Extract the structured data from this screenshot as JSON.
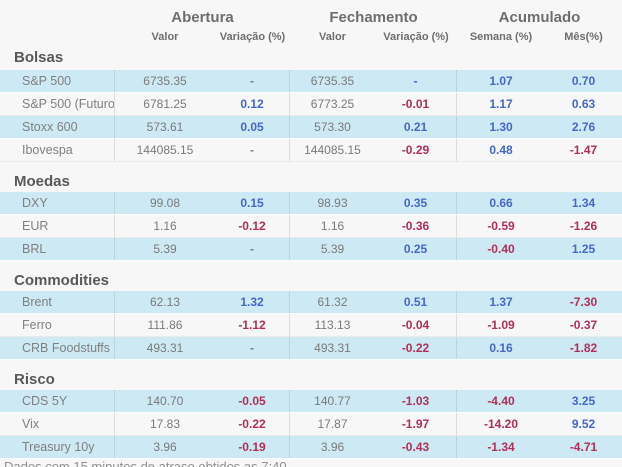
{
  "header": {
    "groups": [
      {
        "label": "Abertura"
      },
      {
        "label": "Fechamento"
      },
      {
        "label": "Acumulado"
      }
    ],
    "subheaders": [
      "Valor",
      "Variação (%)",
      "Valor",
      "Variação (%)",
      "Semana (%)",
      "Mês(%)"
    ]
  },
  "colors": {
    "positive": "#4566ca",
    "negative": "#b02f57",
    "neutral": "#7a7a7a",
    "value_text": "#7a7a7a",
    "label_text": "#808080",
    "row_highlight": "#cde9f3"
  },
  "sections": [
    {
      "title": "Bolsas",
      "rows": [
        {
          "label": "S&P 500",
          "open_value": "6735.35",
          "open_var": "-",
          "open_var_color": "neutral",
          "close_value": "6735.35",
          "close_var": "-",
          "close_var_color": "positive",
          "week": "1.07",
          "week_color": "positive",
          "month": "0.70",
          "month_color": "positive"
        },
        {
          "label": "S&P 500 (Futuro)",
          "open_value": "6781.25",
          "open_var": "0.12",
          "open_var_color": "positive",
          "close_value": "6773.25",
          "close_var": "-0.01",
          "close_var_color": "negative",
          "week": "1.17",
          "week_color": "positive",
          "month": "0.63",
          "month_color": "positive"
        },
        {
          "label": "Stoxx 600",
          "open_value": "573.61",
          "open_var": "0.05",
          "open_var_color": "positive",
          "close_value": "573.30",
          "close_var": "0.21",
          "close_var_color": "positive",
          "week": "1.30",
          "week_color": "positive",
          "month": "2.76",
          "month_color": "positive"
        },
        {
          "label": "Ibovespa",
          "open_value": "144085.15",
          "open_var": "-",
          "open_var_color": "neutral",
          "close_value": "144085.15",
          "close_var": "-0.29",
          "close_var_color": "negative",
          "week": "0.48",
          "week_color": "positive",
          "month": "-1.47",
          "month_color": "negative"
        }
      ]
    },
    {
      "title": "Moedas",
      "rows": [
        {
          "label": "DXY",
          "open_value": "99.08",
          "open_var": "0.15",
          "open_var_color": "positive",
          "close_value": "98.93",
          "close_var": "0.35",
          "close_var_color": "positive",
          "week": "0.66",
          "week_color": "positive",
          "month": "1.34",
          "month_color": "positive"
        },
        {
          "label": "EUR",
          "open_value": "1.16",
          "open_var": "-0.12",
          "open_var_color": "negative",
          "close_value": "1.16",
          "close_var": "-0.36",
          "close_var_color": "negative",
          "week": "-0.59",
          "week_color": "negative",
          "month": "-1.26",
          "month_color": "negative"
        },
        {
          "label": "BRL",
          "open_value": "5.39",
          "open_var": "-",
          "open_var_color": "neutral",
          "close_value": "5.39",
          "close_var": "0.25",
          "close_var_color": "positive",
          "week": "-0.40",
          "week_color": "negative",
          "month": "1.25",
          "month_color": "positive"
        }
      ]
    },
    {
      "title": "Commodities",
      "rows": [
        {
          "label": "Brent",
          "open_value": "62.13",
          "open_var": "1.32",
          "open_var_color": "positive",
          "close_value": "61.32",
          "close_var": "0.51",
          "close_var_color": "positive",
          "week": "1.37",
          "week_color": "positive",
          "month": "-7.30",
          "month_color": "negative"
        },
        {
          "label": "Ferro",
          "open_value": "111.86",
          "open_var": "-1.12",
          "open_var_color": "negative",
          "close_value": "113.13",
          "close_var": "-0.04",
          "close_var_color": "negative",
          "week": "-1.09",
          "week_color": "negative",
          "month": "-0.37",
          "month_color": "negative"
        },
        {
          "label": "CRB Foodstuffs",
          "open_value": "493.31",
          "open_var": "-",
          "open_var_color": "neutral",
          "close_value": "493.31",
          "close_var": "-0.22",
          "close_var_color": "negative",
          "week": "0.16",
          "week_color": "positive",
          "month": "-1.82",
          "month_color": "negative"
        }
      ]
    },
    {
      "title": "Risco",
      "rows": [
        {
          "label": "CDS 5Y",
          "open_value": "140.70",
          "open_var": "-0.05",
          "open_var_color": "negative",
          "close_value": "140.77",
          "close_var": "-1.03",
          "close_var_color": "negative",
          "week": "-4.40",
          "week_color": "negative",
          "month": "3.25",
          "month_color": "positive"
        },
        {
          "label": "Vix",
          "open_value": "17.83",
          "open_var": "-0.22",
          "open_var_color": "negative",
          "close_value": "17.87",
          "close_var": "-1.97",
          "close_var_color": "negative",
          "week": "-14.20",
          "week_color": "negative",
          "month": "9.52",
          "month_color": "positive"
        },
        {
          "label": "Treasury 10y",
          "open_value": "3.96",
          "open_var": "-0.19",
          "open_var_color": "negative",
          "close_value": "3.96",
          "close_var": "-0.43",
          "close_var_color": "negative",
          "week": "-1.34",
          "week_color": "negative",
          "month": "-4.71",
          "month_color": "negative"
        }
      ]
    }
  ],
  "footer": {
    "text": "Dados com 15 minutos de atraso obtidos as 7:40"
  }
}
